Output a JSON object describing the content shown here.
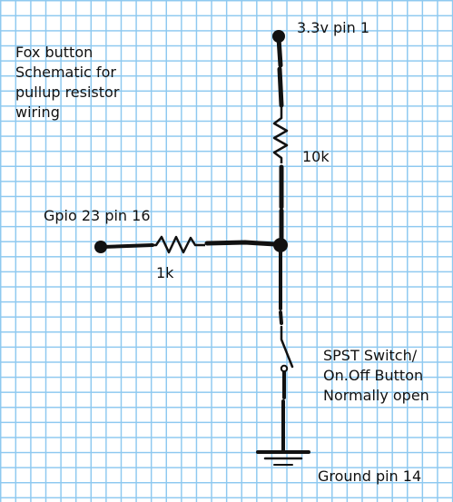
{
  "title_lines": [
    "Fox button",
    "Schematic for",
    "pullup resistor",
    "wiring"
  ],
  "labels": {
    "vcc": "3.3v pin 1",
    "r_pullup": "10k",
    "gpio": "Gpio 23 pin 16",
    "r_series": "1k",
    "switch_lines": [
      "SPST Switch/",
      "On.Off Button",
      "Normally open"
    ],
    "ground": "Ground pin 14"
  },
  "colors": {
    "grid": "#8ec9f0",
    "ink": "#111111",
    "background": "#ffffff"
  }
}
